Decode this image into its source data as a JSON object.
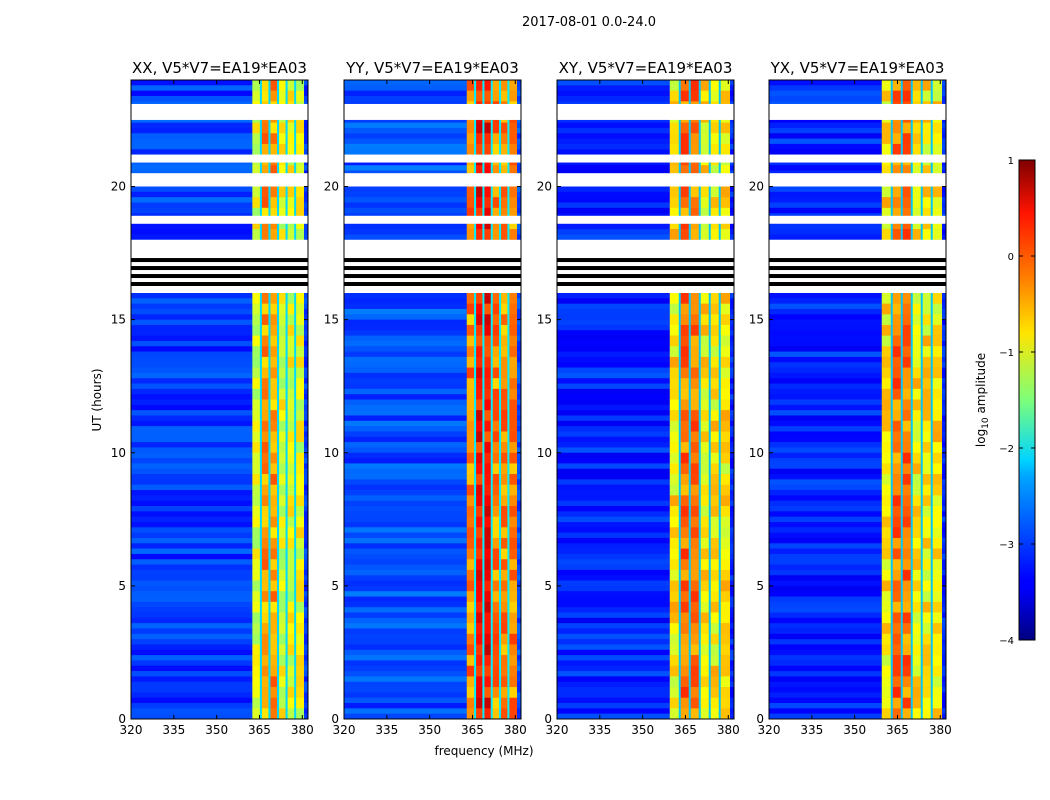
{
  "figure": {
    "suptitle": "2017-08-01 0.0-24.0"
  },
  "colors": {
    "background": "#ffffff",
    "axes": "#000000",
    "jet_start": "#00007f",
    "jet_end": "#7f0000"
  },
  "chart_data": {
    "type": "heatmap",
    "colormap": "jet",
    "title": "2017-08-01 0.0-24.0",
    "xlabel": "frequency (MHz)",
    "ylabel": "UT (hours)",
    "xlim": [
      320,
      382
    ],
    "ylim": [
      0,
      24
    ],
    "x_ticks": [
      320,
      335,
      350,
      365,
      380
    ],
    "y_ticks": [
      0,
      5,
      10,
      15,
      20
    ],
    "colorbar": {
      "label": "log10 amplitude",
      "label_main": "log",
      "label_sub": "10",
      "label_rest": " amplitude",
      "range": [
        -4,
        1
      ],
      "ticks": [
        -4,
        -3,
        -2,
        -1,
        0,
        1
      ],
      "tick_labels": [
        "−4",
        "−3",
        "−2",
        "−1",
        "0",
        "1"
      ]
    },
    "panels": [
      {
        "polarization": "XX",
        "title": "XX, V5*V7=EA19*EA03",
        "band_start_mhz": 362.5,
        "band_end_mhz": 380.5,
        "level_in_band": -1.0,
        "level_outside": -3.1
      },
      {
        "polarization": "YY",
        "title": "YY, V5*V7=EA19*EA03",
        "band_start_mhz": 363,
        "band_end_mhz": 380.5,
        "level_in_band": -0.3,
        "level_outside": -3.0
      },
      {
        "polarization": "XY",
        "title": "XY, V5*V7=EA19*EA03",
        "band_start_mhz": 359.5,
        "band_end_mhz": 380.5,
        "level_in_band": -0.8,
        "level_outside": -3.2
      },
      {
        "polarization": "YX",
        "title": "YX, V5*V7=EA19*EA03",
        "band_start_mhz": 359.5,
        "band_end_mhz": 380.5,
        "level_in_band": -0.8,
        "level_outside": -3.2
      }
    ],
    "flagged_ut_ranges_hours": [
      [
        23.1,
        22.5
      ],
      [
        21.2,
        20.9
      ],
      [
        20.5,
        20.0
      ],
      [
        18.9,
        18.6
      ],
      [
        18.0,
        16.0
      ]
    ]
  }
}
